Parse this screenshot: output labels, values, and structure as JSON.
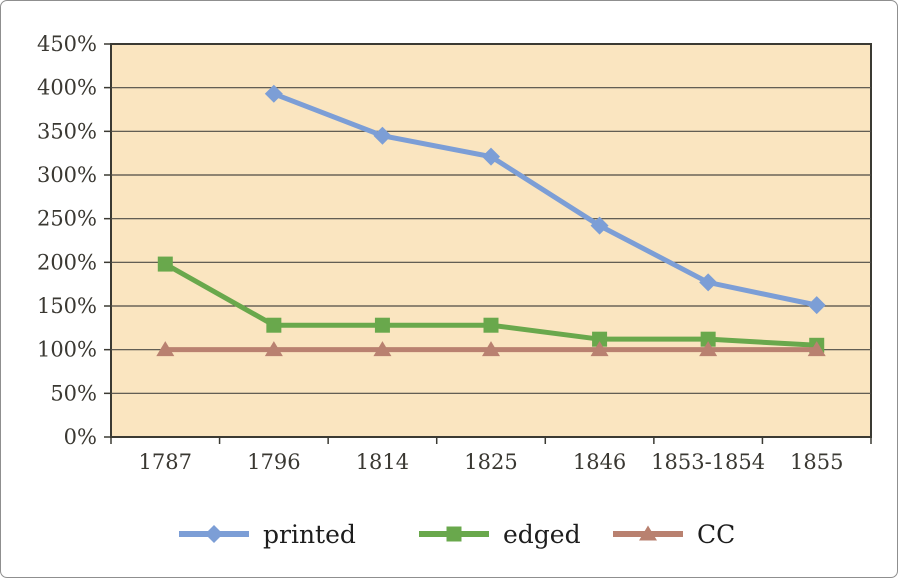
{
  "window": {
    "background": "#ffffff",
    "border_color": "#8f8f8f"
  },
  "chart_data": {
    "type": "line",
    "title": "",
    "xlabel": "",
    "ylabel": "",
    "categories": [
      "1787",
      "1796",
      "1814",
      "1825",
      "1846",
      "1853-1854",
      "1855"
    ],
    "series": [
      {
        "name": "printed",
        "marker": "diamond",
        "color": "#7C9ED6",
        "values": [
          null,
          393,
          345,
          321,
          242,
          177,
          151
        ]
      },
      {
        "name": "edged",
        "marker": "square",
        "color": "#69A84C",
        "values": [
          198,
          128,
          128,
          128,
          112,
          112,
          105
        ]
      },
      {
        "name": "CC",
        "marker": "triangle",
        "color": "#B98170",
        "values": [
          100,
          100,
          100,
          100,
          100,
          100,
          100
        ]
      }
    ],
    "ylim": [
      0,
      450
    ],
    "y_tick_step": 50,
    "y_tick_labels": [
      "0%",
      "50%",
      "100%",
      "150%",
      "200%",
      "250%",
      "300%",
      "350%",
      "400%",
      "450%"
    ],
    "y_tick_format": "percent",
    "grid": "horizontal",
    "legend_position": "bottom",
    "plot_background": "#FAE5C0",
    "gridline_color": "#4D4B44",
    "axis_color": "#3B3A33",
    "text_color": "#3A3832"
  }
}
